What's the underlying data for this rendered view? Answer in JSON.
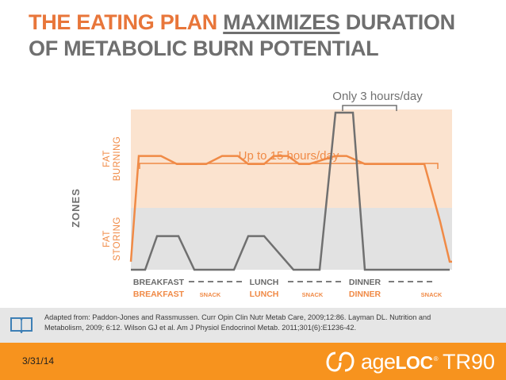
{
  "title": {
    "part1": "THE EATING PLAN ",
    "part2": "MAXIMIZES",
    "part3": " DURATION",
    "line2": "OF METABOLIC BURN POTENTIAL"
  },
  "chart_data": {
    "type": "line",
    "ylabel": "ZONES",
    "zones": [
      "FAT BURNING",
      "FAT STORING"
    ],
    "zone_colors": {
      "fat_burning": "#fbe3cf",
      "fat_storing": "#e2e2e2"
    },
    "annotations": [
      "Up to 15 hours/day",
      "Only 3 hours/day"
    ],
    "meals_top": [
      "BREAKFAST",
      "LUNCH",
      "DINNER"
    ],
    "meals_bottom": [
      "BREAKFAST",
      "SNACK",
      "LUNCH",
      "SNACK",
      "DINNER",
      "SNACK"
    ],
    "series": [
      {
        "color": "#f08a46",
        "x": [
          0,
          10,
          38,
          58,
          75,
          95,
          115,
          135,
          148,
          168,
          180,
          198,
          212,
          225,
          258,
          272,
          295,
          312,
          335,
          370,
          390,
          402,
          405
        ],
        "y": [
          0.05,
          0.71,
          0.71,
          0.66,
          0.66,
          0.66,
          0.71,
          0.71,
          0.66,
          0.66,
          0.71,
          0.71,
          0.66,
          0.66,
          0.71,
          0.71,
          0.66,
          0.66,
          0.66,
          0.66,
          0.3,
          0.05,
          0.05
        ]
      },
      {
        "color": "#707070",
        "x": [
          0,
          18,
          33,
          60,
          80,
          105,
          130,
          148,
          168,
          205,
          218,
          238,
          258,
          280,
          295,
          330,
          402
        ],
        "y": [
          0,
          0,
          0.21,
          0.21,
          0,
          0,
          0,
          0.21,
          0.21,
          0,
          0,
          0,
          0.98,
          0.98,
          0,
          0,
          0
        ]
      }
    ],
    "legend": "none"
  },
  "citation": {
    "line1": "Adapted from:  Paddon-Jones and Rassmussen. Curr Opin Clin Nutr Metab Care, 2009;12:86. Layman DL. Nutrition and",
    "line2": "Metabolism, 2009; 6:12. Wilson GJ et al. Am J Physiol Endocrinol Metab. 2011;301(6):E1236-42."
  },
  "footer": {
    "date": "3/31/14",
    "brand_age": "age",
    "brand_loc": "LOC",
    "brand_reg": "®",
    "brand_tr": "TR90"
  },
  "icons": [
    "book-icon",
    "ageloc-logo-icon"
  ]
}
